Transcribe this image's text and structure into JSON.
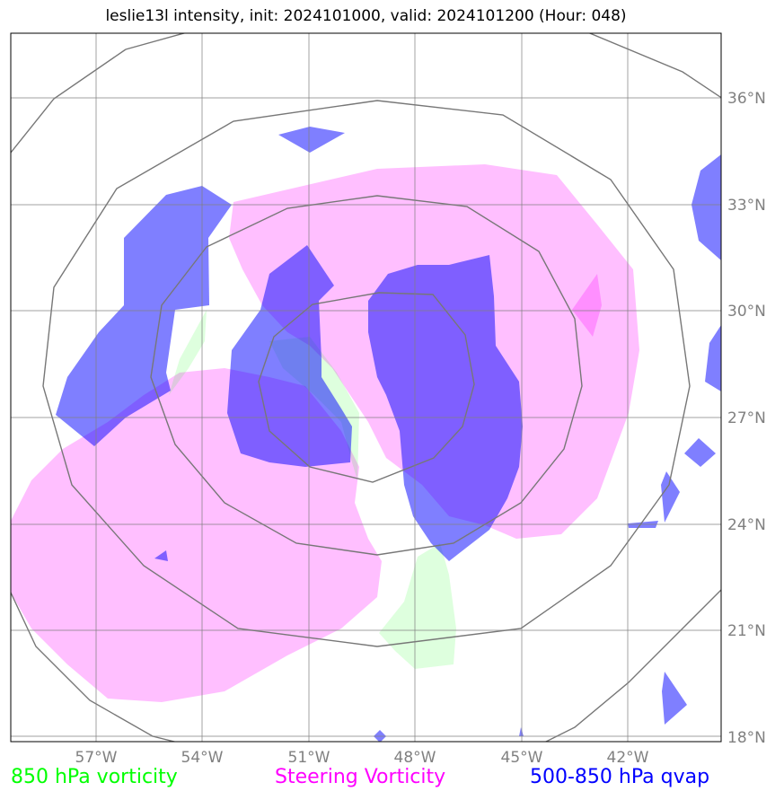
{
  "title": "leslie13l intensity, init: 2024101000, valid: 2024101200 (Hour: 048)",
  "axes": {
    "x_ticks": [
      "57°W",
      "54°W",
      "51°W",
      "48°W",
      "45°W",
      "42°W"
    ],
    "y_ticks": [
      "36°N",
      "33°N",
      "30°N",
      "27°N",
      "24°N",
      "21°N",
      "18°N"
    ]
  },
  "legend": {
    "green": "850 hPa vorticity",
    "magenta": "Steering Vorticity",
    "blue": "500-850 hPa qvap"
  },
  "colors": {
    "green": "#00ff00",
    "magenta": "#ff00ff",
    "blue": "#0000ff",
    "grid": "#808080",
    "rings": "#777777"
  }
}
